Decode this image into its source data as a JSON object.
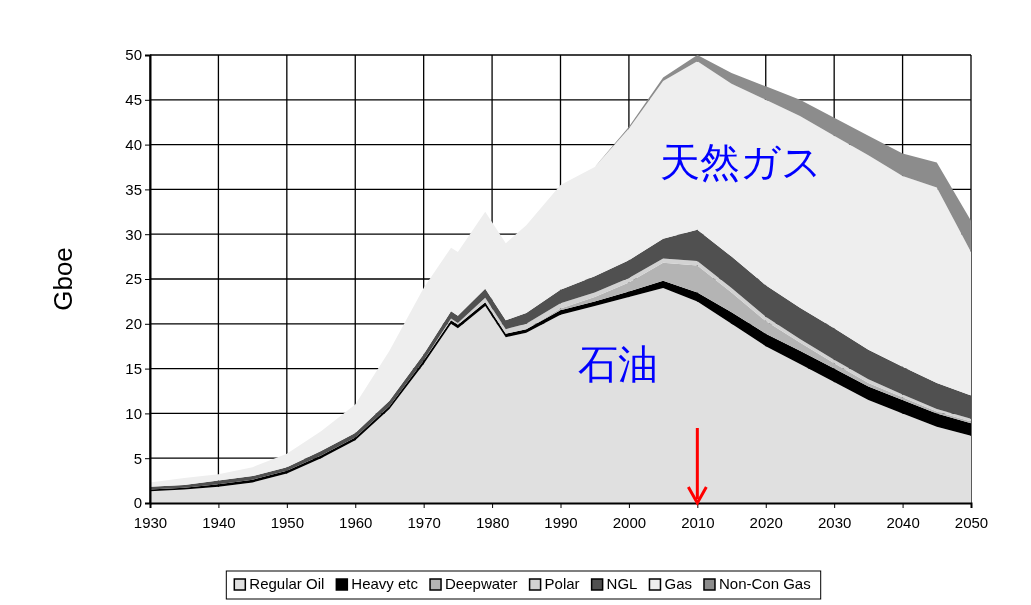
{
  "chart_data": {
    "type": "area",
    "stacked": true,
    "ylabel": "Gboe",
    "x": [
      1930,
      1935,
      1940,
      1945,
      1950,
      1955,
      1960,
      1965,
      1970,
      1974,
      1975,
      1979,
      1982,
      1985,
      1990,
      1995,
      2000,
      2005,
      2010,
      2015,
      2020,
      2025,
      2030,
      2035,
      2040,
      2045,
      2050
    ],
    "series": [
      {
        "name": "Regular Oil",
        "color": "#e0e0e0",
        "values": [
          1.3,
          1.5,
          1.8,
          2.3,
          3.3,
          5.0,
          7.0,
          10.5,
          15.5,
          20,
          19.5,
          22,
          18.5,
          19,
          21,
          22,
          23,
          24,
          22.5,
          20,
          17.5,
          15.5,
          13.5,
          11.5,
          10,
          8.5,
          7.5
        ]
      },
      {
        "name": "Heavy etc",
        "color": "#000000",
        "values": [
          0.2,
          0.2,
          0.3,
          0.3,
          0.3,
          0.3,
          0.3,
          0.3,
          0.4,
          0.4,
          0.4,
          0.4,
          0.4,
          0.4,
          0.5,
          0.5,
          0.6,
          0.8,
          1,
          1.3,
          1.4,
          1.5,
          1.5,
          1.5,
          1.5,
          1.5,
          1.4
        ]
      },
      {
        "name": "Deepwater",
        "color": "#b4b4b4",
        "values": [
          0,
          0,
          0,
          0,
          0,
          0,
          0,
          0,
          0,
          0,
          0,
          0,
          0,
          0,
          0.2,
          0.5,
          1,
          2,
          3,
          2.2,
          1.4,
          0.9,
          0.6,
          0.4,
          0.3,
          0.2,
          0.2
        ]
      },
      {
        "name": "Polar",
        "color": "#d2d2d2",
        "values": [
          0,
          0,
          0,
          0,
          0,
          0,
          0,
          0,
          0,
          0.2,
          0.2,
          0.5,
          0.5,
          0.6,
          0.6,
          0.5,
          0.5,
          0.5,
          0.5,
          0.5,
          0.5,
          0.4,
          0.4,
          0.4,
          0.3,
          0.3,
          0.3
        ]
      },
      {
        "name": "NGL",
        "color": "#505050",
        "values": [
          0.3,
          0.3,
          0.4,
          0.4,
          0.4,
          0.5,
          0.5,
          0.6,
          0.7,
          0.8,
          0.8,
          1,
          1,
          1.2,
          1.5,
          1.8,
          2,
          2.2,
          3.5,
          3.5,
          3.5,
          3.5,
          3.5,
          3.3,
          3.1,
          2.9,
          2.6
        ]
      },
      {
        "name": "Gas",
        "color": "#eeeeee",
        "values": [
          0.5,
          0.8,
          0.7,
          1.0,
          1.5,
          2.2,
          3.2,
          5.6,
          7.4,
          7.1,
          7.1,
          8.6,
          8.6,
          9.8,
          11.7,
          12.2,
          14.7,
          17.6,
          18.8,
          19.3,
          20.7,
          21.4,
          21.5,
          21.7,
          21.3,
          21.8,
          16
        ]
      },
      {
        "name": "Non-Con Gas",
        "color": "#8c8c8c",
        "values": [
          0,
          0,
          0,
          0,
          0,
          0,
          0,
          0,
          0,
          0,
          0,
          0,
          0,
          0,
          0,
          0,
          0.2,
          0.4,
          0.7,
          1.2,
          1.5,
          1.8,
          2,
          2.2,
          2.5,
          2.8,
          3.5
        ]
      }
    ],
    "xlim": [
      1930,
      2050
    ],
    "xticks": [
      1930,
      1940,
      1950,
      1960,
      1970,
      1980,
      1990,
      2000,
      2010,
      2020,
      2030,
      2040,
      2050
    ],
    "ylim": [
      0,
      50
    ],
    "yticks": [
      0,
      5,
      10,
      15,
      20,
      25,
      30,
      35,
      40,
      45,
      50
    ],
    "grid": true,
    "legend": "bottom",
    "annotations": [
      "天然ガス",
      "石油"
    ],
    "ref_lines": [
      {
        "axis": "x",
        "value": 2010,
        "color": "#ff0000"
      }
    ]
  }
}
